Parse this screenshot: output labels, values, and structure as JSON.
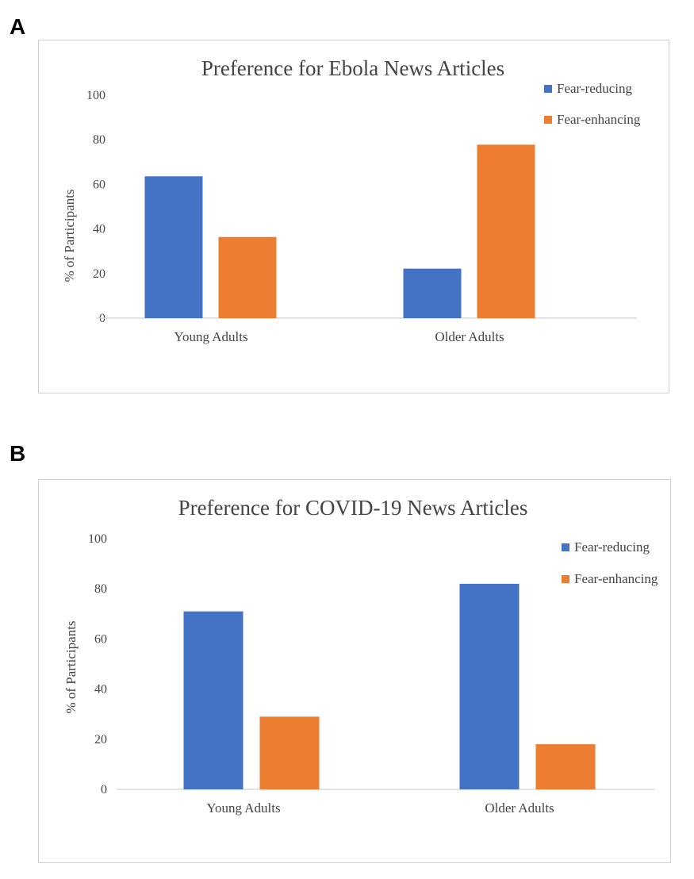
{
  "panels": {
    "a": {
      "letter": "A"
    },
    "b": {
      "letter": "B"
    }
  },
  "colors": {
    "fear_reducing": "#4472C4",
    "fear_enhancing": "#ED7D31",
    "axis": "#d9d9d9"
  },
  "chart_data": [
    {
      "type": "bar",
      "title": "Preference for Ebola News Articles",
      "xlabel": "",
      "ylabel": "% of Participants",
      "categories": [
        "Young Adults",
        "Older Adults"
      ],
      "series": [
        {
          "name": "Fear-reducing",
          "values": [
            63.6,
            22.2
          ]
        },
        {
          "name": "Fear-enhancing",
          "values": [
            36.4,
            77.8
          ]
        }
      ],
      "ylim": [
        0,
        100
      ],
      "yticks": [
        "0",
        "20",
        "40",
        "60",
        "80",
        "100"
      ],
      "grid": false,
      "legend": "top-right"
    },
    {
      "type": "bar",
      "title": "Preference for COVID-19 News Articles",
      "xlabel": "",
      "ylabel": "% of Participants",
      "categories": [
        "Young Adults",
        "Older Adults"
      ],
      "series": [
        {
          "name": "Fear-reducing",
          "values": [
            71,
            82
          ]
        },
        {
          "name": "Fear-enhancing",
          "values": [
            29,
            18
          ]
        }
      ],
      "ylim": [
        0,
        100
      ],
      "yticks": [
        "0",
        "20",
        "40",
        "60",
        "80",
        "100"
      ],
      "grid": false,
      "legend": "top-right"
    }
  ]
}
